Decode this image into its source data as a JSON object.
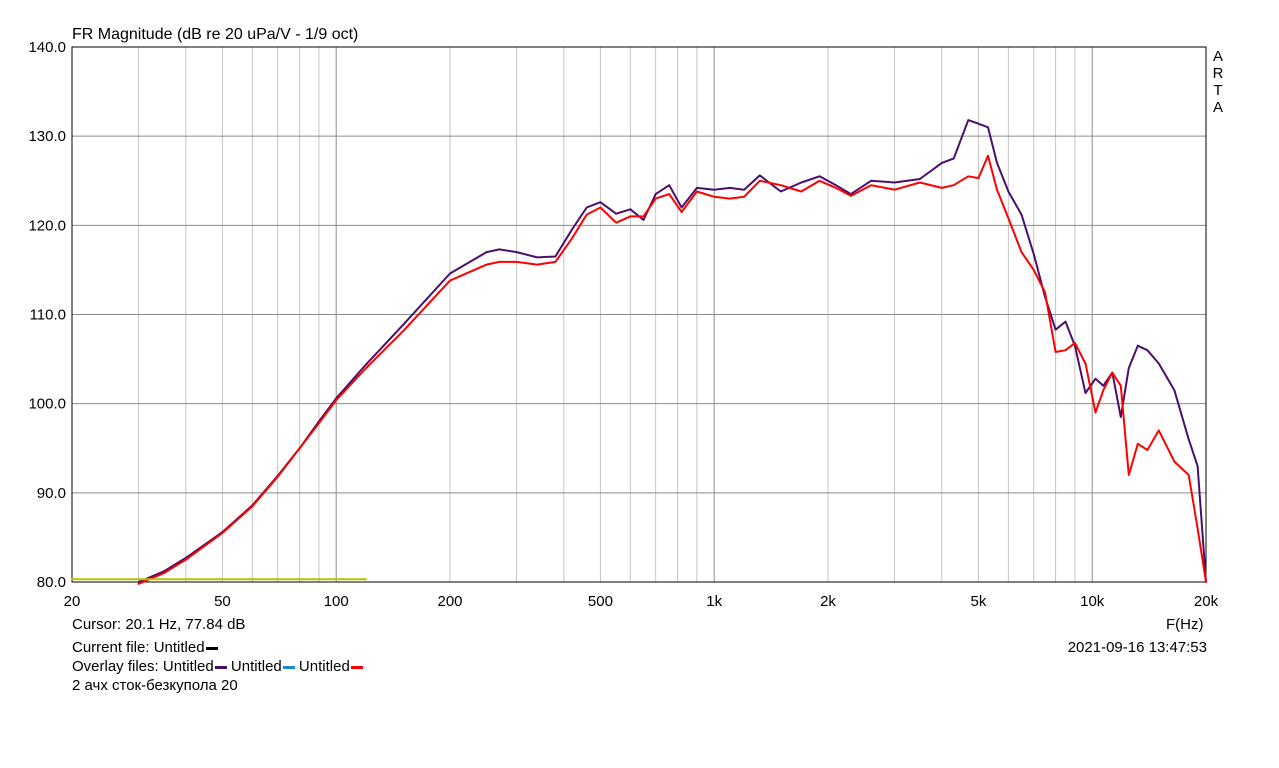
{
  "chart_data": {
    "type": "line",
    "title": "FR Magnitude (dB re 20 uPa/V - 1/9 oct)",
    "xlabel": "F(Hz)",
    "ylabel": "",
    "x_scale": "log",
    "xlim": [
      20,
      20000
    ],
    "ylim": [
      80,
      140
    ],
    "grid": true,
    "x_tick_values": [
      20,
      50,
      100,
      200,
      500,
      1000,
      2000,
      5000,
      10000,
      20000
    ],
    "x_tick_labels": [
      "20",
      "50",
      "100",
      "200",
      "500",
      "1k",
      "2k",
      "5k",
      "10k",
      "20k"
    ],
    "y_ticks": [
      80,
      90,
      100,
      110,
      120,
      130,
      140
    ],
    "y_tick_labels": [
      "80.0",
      "90.0",
      "100.0",
      "110.0",
      "120.0",
      "130.0",
      "140.0"
    ],
    "series": [
      {
        "name": "Untitled",
        "color": "#4b0f6b",
        "points": [
          [
            30,
            80.0
          ],
          [
            35,
            81.2
          ],
          [
            40,
            82.7
          ],
          [
            50,
            85.6
          ],
          [
            60,
            88.6
          ],
          [
            70,
            91.9
          ],
          [
            80,
            95.0
          ],
          [
            90,
            98.0
          ],
          [
            100,
            100.6
          ],
          [
            120,
            104.4
          ],
          [
            150,
            108.8
          ],
          [
            200,
            114.6
          ],
          [
            250,
            117.0
          ],
          [
            270,
            117.3
          ],
          [
            300,
            117.0
          ],
          [
            340,
            116.4
          ],
          [
            380,
            116.5
          ],
          [
            420,
            119.5
          ],
          [
            460,
            122.0
          ],
          [
            500,
            122.6
          ],
          [
            550,
            121.3
          ],
          [
            600,
            121.8
          ],
          [
            650,
            120.6
          ],
          [
            700,
            123.5
          ],
          [
            760,
            124.5
          ],
          [
            820,
            122.0
          ],
          [
            900,
            124.2
          ],
          [
            1000,
            124.0
          ],
          [
            1100,
            124.2
          ],
          [
            1200,
            124.0
          ],
          [
            1320,
            125.6
          ],
          [
            1500,
            123.8
          ],
          [
            1700,
            124.8
          ],
          [
            1900,
            125.5
          ],
          [
            2100,
            124.5
          ],
          [
            2300,
            123.5
          ],
          [
            2600,
            125.0
          ],
          [
            3000,
            124.8
          ],
          [
            3500,
            125.2
          ],
          [
            4000,
            127.0
          ],
          [
            4300,
            127.5
          ],
          [
            4700,
            131.8
          ],
          [
            5000,
            131.4
          ],
          [
            5300,
            131.0
          ],
          [
            5600,
            127.0
          ],
          [
            6000,
            123.8
          ],
          [
            6500,
            121.2
          ],
          [
            7000,
            116.8
          ],
          [
            7500,
            112.0
          ],
          [
            8000,
            108.3
          ],
          [
            8500,
            109.2
          ],
          [
            9000,
            106.5
          ],
          [
            9600,
            101.2
          ],
          [
            10200,
            102.8
          ],
          [
            10700,
            102.0
          ],
          [
            11300,
            103.5
          ],
          [
            11900,
            98.5
          ],
          [
            12500,
            104.0
          ],
          [
            13200,
            106.5
          ],
          [
            14000,
            106.0
          ],
          [
            15000,
            104.5
          ],
          [
            16500,
            101.5
          ],
          [
            18000,
            96.0
          ],
          [
            19000,
            93.0
          ],
          [
            20000,
            80.0
          ]
        ]
      },
      {
        "name": "Untitled",
        "color": "#1e88d8",
        "points": []
      },
      {
        "name": "Untitled",
        "color": "#ff0000",
        "points": [
          [
            30,
            79.8
          ],
          [
            35,
            81.0
          ],
          [
            40,
            82.5
          ],
          [
            50,
            85.5
          ],
          [
            60,
            88.5
          ],
          [
            70,
            91.8
          ],
          [
            80,
            95.0
          ],
          [
            90,
            97.8
          ],
          [
            100,
            100.4
          ],
          [
            120,
            104.0
          ],
          [
            150,
            108.1
          ],
          [
            200,
            113.8
          ],
          [
            250,
            115.6
          ],
          [
            270,
            115.9
          ],
          [
            300,
            115.9
          ],
          [
            340,
            115.6
          ],
          [
            380,
            115.9
          ],
          [
            420,
            118.5
          ],
          [
            460,
            121.2
          ],
          [
            500,
            122.0
          ],
          [
            550,
            120.3
          ],
          [
            600,
            121.0
          ],
          [
            650,
            121.0
          ],
          [
            700,
            123.0
          ],
          [
            760,
            123.5
          ],
          [
            820,
            121.5
          ],
          [
            900,
            123.8
          ],
          [
            1000,
            123.2
          ],
          [
            1100,
            123.0
          ],
          [
            1200,
            123.2
          ],
          [
            1320,
            125.0
          ],
          [
            1500,
            124.5
          ],
          [
            1700,
            123.8
          ],
          [
            1900,
            125.0
          ],
          [
            2100,
            124.2
          ],
          [
            2300,
            123.3
          ],
          [
            2600,
            124.5
          ],
          [
            3000,
            124.0
          ],
          [
            3500,
            124.8
          ],
          [
            4000,
            124.2
          ],
          [
            4300,
            124.5
          ],
          [
            4700,
            125.5
          ],
          [
            5000,
            125.3
          ],
          [
            5300,
            127.8
          ],
          [
            5600,
            124.0
          ],
          [
            6000,
            120.8
          ],
          [
            6500,
            117.0
          ],
          [
            7000,
            115.0
          ],
          [
            7500,
            112.5
          ],
          [
            8000,
            105.8
          ],
          [
            8500,
            106.0
          ],
          [
            9000,
            106.8
          ],
          [
            9600,
            104.5
          ],
          [
            10200,
            99.0
          ],
          [
            10700,
            101.5
          ],
          [
            11300,
            103.5
          ],
          [
            11900,
            102.0
          ],
          [
            12500,
            92.0
          ],
          [
            13200,
            95.5
          ],
          [
            14000,
            94.8
          ],
          [
            15000,
            97.0
          ],
          [
            16500,
            93.5
          ],
          [
            18000,
            92.0
          ],
          [
            19000,
            86.0
          ],
          [
            20000,
            80.0
          ]
        ]
      },
      {
        "name": "",
        "color": "#b8c200",
        "points": [
          [
            20,
            80.3
          ],
          [
            120,
            80.3
          ]
        ]
      }
    ]
  },
  "corner_label": [
    "A",
    "R",
    "T",
    "A"
  ],
  "cursor_text": "Cursor: 20.1 Hz, 77.84 dB",
  "current_file_text": "Current file: Untitled",
  "overlay_prefix": "Overlay files: Untitled",
  "overlay_names": [
    "Untitled",
    "Untitled"
  ],
  "caption": "2 ачх сток-безкупола 20",
  "timestamp": "2021-09-16  13:47:53",
  "swatch_colors": {
    "current": "#000000",
    "overlay1": "#4b0f6b",
    "overlay2": "#1e88d8",
    "overlay3": "#ff0000"
  }
}
